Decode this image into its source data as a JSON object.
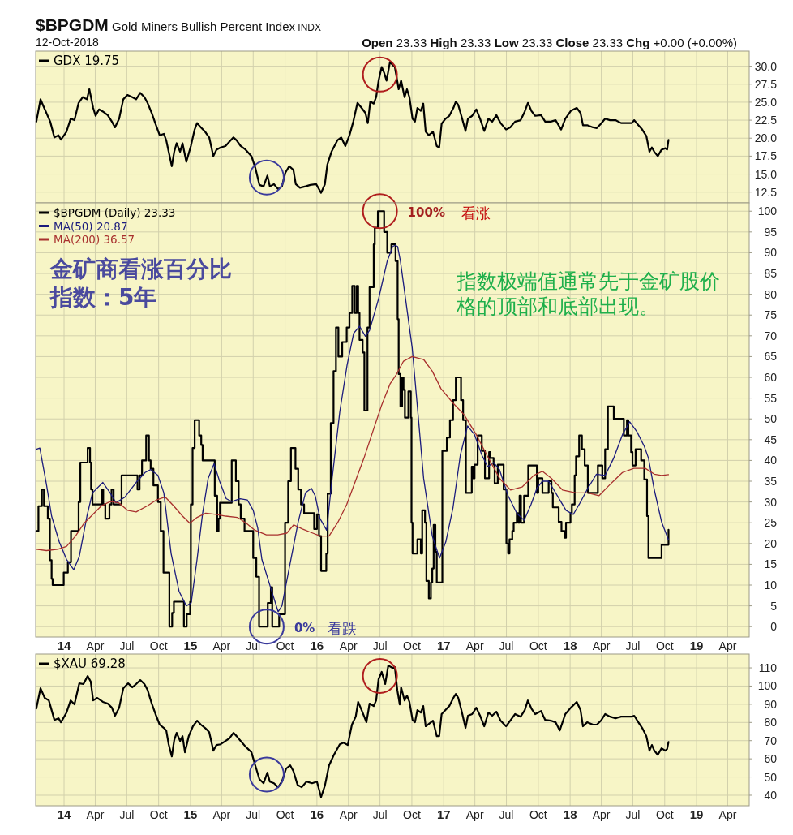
{
  "chart_data": [
    {
      "type": "line",
      "title": "$BPGDM Gold Miners Bullish Percent Index INDX",
      "subtitle": "12-Oct-2018",
      "annotations": [
        "Open 23.33 High 23.33 Low 23.33 Close 23.33 Chg +0.00 (+0.00%)"
      ],
      "x": [
        "2013-10-13",
        "2013-10-25",
        "2013-11-01",
        "2013-11-22",
        "2013-12-04",
        "2013-12-16",
        "2013-12-23",
        "2014-01-08",
        "2014-01-20",
        "2014-01-31",
        "2014-02-12",
        "2014-02-24",
        "2014-03-08",
        "2014-03-15",
        "2014-03-26",
        "2014-04-02",
        "2014-04-12",
        "2014-04-23",
        "2014-05-07",
        "2014-05-19",
        "2014-05-28",
        "2014-06-09",
        "2014-06-21",
        "2014-07-03",
        "2014-07-17",
        "2014-07-28",
        "2014-08-09",
        "2014-08-21",
        "2014-08-30",
        "2014-09-11",
        "2014-09-22",
        "2014-10-04",
        "2014-10-16",
        "2014-10-23",
        "2014-10-30",
        "2014-11-08",
        "2014-11-15",
        "2014-11-22",
        "2014-12-02",
        "2014-12-09",
        "2014-12-20",
        "2015-01-02",
        "2015-01-13",
        "2015-01-20",
        "2015-01-31",
        "2015-02-12",
        "2015-02-24",
        "2015-03-08",
        "2015-03-17",
        "2015-03-29",
        "2015-04-12",
        "2015-04-23",
        "2015-05-05",
        "2015-05-14",
        "2015-05-26",
        "2015-06-09",
        "2015-06-26",
        "2015-07-07",
        "2015-07-19",
        "2015-07-31",
        "2015-08-11",
        "2015-08-18",
        "2015-08-30",
        "2015-09-11",
        "2015-09-22",
        "2015-10-02",
        "2015-10-13",
        "2015-10-25",
        "2015-11-01",
        "2015-11-13",
        "2015-11-29",
        "2015-12-13",
        "2015-12-30",
        "2016-01-13",
        "2016-01-24",
        "2016-01-31",
        "2016-02-12",
        "2016-02-29",
        "2016-03-11",
        "2016-03-23",
        "2016-04-04",
        "2016-04-15",
        "2016-04-27",
        "2016-05-09",
        "2016-05-20",
        "2016-05-27",
        "2016-06-03",
        "2016-06-13",
        "2016-06-20",
        "2016-06-27",
        "2016-07-06",
        "2016-07-13",
        "2016-07-20",
        "2016-07-30",
        "2016-08-06",
        "2016-08-13",
        "2016-08-24",
        "2016-08-31",
        "2016-09-10",
        "2016-09-17",
        "2016-09-24",
        "2016-10-03",
        "2016-10-10",
        "2016-10-17",
        "2016-10-27",
        "2016-11-03",
        "2016-11-10",
        "2016-11-19",
        "2016-12-01",
        "2016-12-12",
        "2016-12-19",
        "2016-12-26",
        "2017-01-06",
        "2017-01-17",
        "2017-01-29",
        "2017-02-05",
        "2017-02-12",
        "2017-02-21",
        "2017-03-05",
        "2017-03-12",
        "2017-03-24",
        "2017-04-05",
        "2017-04-16",
        "2017-04-28",
        "2017-05-10",
        "2017-05-21",
        "2017-06-02",
        "2017-06-14",
        "2017-06-30",
        "2017-07-12",
        "2017-07-26",
        "2017-08-11",
        "2017-08-23",
        "2017-09-01",
        "2017-09-11",
        "2017-09-22",
        "2017-10-09",
        "2017-10-21",
        "2017-11-06",
        "2017-11-20",
        "2017-12-06",
        "2017-12-18",
        "2018-01-03",
        "2018-01-20",
        "2018-01-31",
        "2018-02-07",
        "2018-02-19",
        "2018-03-08",
        "2018-03-19",
        "2018-03-31",
        "2018-04-12",
        "2018-04-26",
        "2018-05-12",
        "2018-05-28",
        "2018-06-11",
        "2018-06-28",
        "2018-07-05",
        "2018-07-17",
        "2018-07-28",
        "2018-08-09",
        "2018-08-18",
        "2018-08-25",
        "2018-09-01",
        "2018-09-11",
        "2018-09-22",
        "2018-10-03",
        "2018-10-08",
        "2018-10-12"
      ],
      "series": [
        {
          "name": "GDX 19.75",
          "color": "#000000",
          "values": [
            22.3,
            25.4,
            24.6,
            22.3,
            20.1,
            20.4,
            19.8,
            20.9,
            22.7,
            22.5,
            24.9,
            25.7,
            25.4,
            26.8,
            24.2,
            23.1,
            24,
            23.7,
            23.2,
            22.3,
            21.5,
            22.7,
            25.4,
            26,
            25.7,
            25.4,
            26.3,
            25.7,
            24.9,
            23.5,
            22,
            20.4,
            20.6,
            19.7,
            18.1,
            16.1,
            18.1,
            19.3,
            18.1,
            19.3,
            16.7,
            18.9,
            21.2,
            22.1,
            21.5,
            20.9,
            20.1,
            17.5,
            18.4,
            18.7,
            18.9,
            19.5,
            20.1,
            19.7,
            18.9,
            18.4,
            17.5,
            15.9,
            13.5,
            13.3,
            14.8,
            13.3,
            13.6,
            12.9,
            13.3,
            15.2,
            16.1,
            15.6,
            13.6,
            13.1,
            13.3,
            13.5,
            13.6,
            12.4,
            13.6,
            16.3,
            18.1,
            19.7,
            20.1,
            18.9,
            20.4,
            22.3,
            24.9,
            24.2,
            23.5,
            22.1,
            25.1,
            24.8,
            25.7,
            28,
            29.9,
            29.1,
            28,
            30.6,
            30.2,
            29.9,
            26.8,
            28,
            25.7,
            26.8,
            25.7,
            22.7,
            22.3,
            24.2,
            23.8,
            24.8,
            20.9,
            20.4,
            20.9,
            18.9,
            18.7,
            22,
            22.7,
            23.1,
            24.2,
            25.1,
            24.6,
            23.1,
            21,
            22.7,
            23.1,
            24,
            22.7,
            21,
            22.7,
            22.3,
            23.2,
            22.1,
            21.2,
            21.5,
            22.3,
            22.5,
            23.7,
            24.9,
            23.8,
            23.1,
            23.2,
            22.3,
            22.3,
            22.5,
            21.2,
            22.7,
            23.8,
            24.2,
            23.5,
            21.8,
            21.8,
            21.5,
            21.4,
            22,
            22.7,
            22.5,
            22.5,
            22.1,
            22.1,
            22.1,
            22.5,
            21.8,
            21.2,
            20.3,
            18.1,
            18.7,
            18.1,
            17.5,
            18.4,
            18.6,
            18.4,
            19.75
          ]
        }
      ],
      "xlim": [
        "2013-10-11",
        "2019-06-02"
      ],
      "xticks": [
        {
          "value": "2014-01-01",
          "label": null
        },
        {
          "value": "2014-04-01",
          "label": null
        },
        {
          "value": "2014-07-01",
          "label": null
        },
        {
          "value": "2014-10-01",
          "label": null
        },
        {
          "value": "2015-01-01",
          "label": null
        },
        {
          "value": "2015-04-01",
          "label": null
        },
        {
          "value": "2015-07-01",
          "label": null
        },
        {
          "value": "2015-10-01",
          "label": null
        },
        {
          "value": "2016-01-01",
          "label": null
        },
        {
          "value": "2016-04-01",
          "label": null
        },
        {
          "value": "2016-07-01",
          "label": null
        },
        {
          "value": "2016-10-01",
          "label": null
        },
        {
          "value": "2017-01-01",
          "label": null
        },
        {
          "value": "2017-04-01",
          "label": null
        },
        {
          "value": "2017-07-01",
          "label": null
        },
        {
          "value": "2017-10-01",
          "label": null
        },
        {
          "value": "2018-01-01",
          "label": null
        },
        {
          "value": "2018-04-01",
          "label": null
        },
        {
          "value": "2018-07-01",
          "label": null
        },
        {
          "value": "2018-10-01",
          "label": null
        },
        {
          "value": "2019-01-01",
          "label": null
        },
        {
          "value": "2019-04-01",
          "label": null
        }
      ],
      "ylim": [
        11,
        32.1
      ],
      "yticks": [
        12.5,
        {
          "value": 15,
          "label": "15.0"
        },
        17.5,
        {
          "value": 20,
          "label": "20.0"
        },
        22.5,
        {
          "value": 25,
          "label": "25.0"
        },
        27.5,
        {
          "value": 30,
          "label": "30.0"
        }
      ],
      "grid": true,
      "legend": "top left",
      "tick_labels": "y"
    },
    {
      "type": "line",
      "annotations": [
        {
          "text": "100%",
          "x": "2016-07-01",
          "y": 100
        },
        "看涨",
        {
          "text": "0%",
          "x": "2015-08-09",
          "y": 0
        },
        "看跌",
        "金矿商看涨百分比指数：5年",
        "指数极端值通常先于金矿股价格的顶部和底部出现。"
      ],
      "series": [
        {
          "name": "$BPGDM (Daily) 23.33",
          "type": "step",
          "color": "#000000",
          "x": [
            "2013-10-13",
            "2013-10-19",
            "2013-10-29",
            "2013-11-04",
            "2013-11-15",
            "2013-11-21",
            "2013-11-26",
            "2013-11-29",
            "2013-12-31",
            "2014-01-12",
            "2014-01-21",
            "2014-02-12",
            "2014-02-17",
            "2014-03-10",
            "2014-03-17",
            "2014-03-20",
            "2014-03-24",
            "2014-04-19",
            "2014-04-24",
            "2014-04-30",
            "2014-05-12",
            "2014-05-18",
            "2014-05-24",
            "2014-06-16",
            "2014-08-01",
            "2014-08-07",
            "2014-08-14",
            "2014-08-26",
            "2014-09-03",
            "2014-09-08",
            "2014-09-16",
            "2014-09-29",
            "2014-10-07",
            "2014-10-15",
            "2014-11-01",
            "2014-11-09",
            "2014-11-14",
            "2014-12-13",
            "2014-12-21",
            "2014-12-31",
            "2015-01-02",
            "2015-01-07",
            "2015-01-13",
            "2015-01-26",
            "2015-02-01",
            "2015-02-05",
            "2015-03-12",
            "2015-03-19",
            "2015-03-23",
            "2015-03-27",
            "2015-04-30",
            "2015-05-12",
            "2015-05-20",
            "2015-05-26",
            "2015-06-06",
            "2015-07-01",
            "2015-07-10",
            "2015-07-18",
            "2015-08-12",
            "2015-08-21",
            "2015-08-25",
            "2015-09-14",
            "2015-10-01",
            "2015-10-10",
            "2015-10-18",
            "2015-10-31",
            "2015-11-08",
            "2015-11-16",
            "2015-11-25",
            "2015-12-24",
            "2016-01-01",
            "2016-01-07",
            "2016-01-13",
            "2016-01-28",
            "2016-02-01",
            "2016-02-10",
            "2016-02-18",
            "2016-02-25",
            "2016-03-03",
            "2016-03-14",
            "2016-03-27",
            "2016-04-04",
            "2016-04-12",
            "2016-04-19",
            "2016-04-25",
            "2016-04-29",
            "2016-05-03",
            "2016-05-12",
            "2016-05-17",
            "2016-05-26",
            "2016-06-01",
            "2016-06-13",
            "2016-06-16",
            "2016-06-25",
            "2016-07-13",
            "2016-07-22",
            "2016-08-03",
            "2016-08-15",
            "2016-08-21",
            "2016-08-24",
            "2016-08-29",
            "2016-09-03",
            "2016-09-07",
            "2016-09-11",
            "2016-09-21",
            "2016-09-28",
            "2016-09-30",
            "2016-10-03",
            "2016-10-17",
            "2016-10-27",
            "2016-10-31",
            "2016-11-08",
            "2016-11-12",
            "2016-11-19",
            "2016-11-25",
            "2016-11-29",
            "2016-12-03",
            "2016-12-08",
            "2016-12-12",
            "2016-12-28",
            "2017-01-10",
            "2017-01-19",
            "2017-01-28",
            "2017-02-05",
            "2017-02-20",
            "2017-02-26",
            "2017-03-06",
            "2017-03-23",
            "2017-03-27",
            "2017-03-31",
            "2017-04-09",
            "2017-04-21",
            "2017-04-30",
            "2017-05-12",
            "2017-05-16",
            "2017-05-25",
            "2017-05-28",
            "2017-06-06",
            "2017-06-23",
            "2017-07-01",
            "2017-07-06",
            "2017-07-10",
            "2017-07-18",
            "2017-07-22",
            "2017-07-31",
            "2017-08-04",
            "2017-08-08",
            "2017-08-12",
            "2017-08-21",
            "2017-09-02",
            "2017-09-27",
            "2017-10-01",
            "2017-10-13",
            "2017-10-31",
            "2017-11-08",
            "2017-11-12",
            "2017-11-29",
            "2017-12-07",
            "2017-12-16",
            "2017-12-20",
            "2018-01-02",
            "2018-01-06",
            "2018-01-14",
            "2018-01-18",
            "2018-01-27",
            "2018-02-04",
            "2018-02-12",
            "2018-02-21",
            "2018-03-22",
            "2018-04-04",
            "2018-04-12",
            "2018-04-20",
            "2018-05-07",
            "2018-06-05",
            "2018-06-14",
            "2018-06-18",
            "2018-06-26",
            "2018-06-30",
            "2018-07-09",
            "2018-07-25",
            "2018-08-03",
            "2018-08-11",
            "2018-08-15",
            "2018-09-22",
            "2018-10-12"
          ],
          "values": [
            23,
            29,
            33,
            29,
            26,
            16,
            11.5,
            10,
            13,
            15.5,
            23,
            30,
            39.5,
            43,
            39.5,
            33,
            29.4,
            33,
            29.4,
            26,
            29.4,
            33,
            29.4,
            36.4,
            33,
            36.4,
            40,
            46,
            40,
            38,
            34,
            30,
            23,
            13,
            0,
            3.3,
            6,
            0,
            3,
            6,
            29.4,
            43,
            49.7,
            46,
            43.7,
            40,
            31.5,
            23,
            26,
            29.8,
            40,
            35,
            29.4,
            26,
            23,
            16.5,
            12,
            0,
            5.7,
            9.5,
            0,
            3,
            25,
            35,
            43,
            38,
            33,
            29.4,
            27.3,
            23.5,
            27,
            21.8,
            13.4,
            17.6,
            32,
            49,
            61.5,
            72,
            65,
            68.5,
            72,
            75.5,
            82,
            75.5,
            82,
            75.5,
            69,
            66,
            52,
            72,
            81.7,
            92,
            96,
            100,
            95,
            90,
            92,
            88,
            74,
            60.8,
            53,
            60,
            57,
            50.3,
            56.6,
            50.3,
            25,
            17.6,
            21,
            17.6,
            28,
            25,
            11,
            6.8,
            10.6,
            14,
            24.5,
            18,
            10.6,
            42.3,
            45.5,
            49.7,
            54.5,
            60,
            54.5,
            49.7,
            32.2,
            38.5,
            35.7,
            39,
            46,
            42.3,
            35.7,
            42,
            40.6,
            39,
            34.5,
            39,
            33,
            20,
            17.6,
            21,
            23,
            25,
            27.3,
            25,
            31.5,
            25,
            31.5,
            38.8,
            32.2,
            35.7,
            32.2,
            35,
            32.2,
            28.7,
            25.2,
            23,
            21.4,
            25,
            27.3,
            29.4,
            36.4,
            41,
            46,
            42.7,
            38.8,
            32.2,
            38.8,
            35.7,
            42.7,
            53,
            50,
            46,
            49.7,
            46,
            42,
            38.8,
            42.7,
            40,
            35.4,
            26.6,
            16.5,
            19.7,
            23.33
          ]
        },
        {
          "name": "MA(50) 20.87",
          "color": "#1b1b7d",
          "x": [
            "2013-10-13",
            "2013-10-23",
            "2013-11-11",
            "2013-11-26",
            "2013-12-18",
            "2014-01-08",
            "2014-01-29",
            "2014-02-14",
            "2014-03-08",
            "2014-03-24",
            "2014-04-23",
            "2014-05-14",
            "2014-05-31",
            "2014-06-26",
            "2014-07-28",
            "2014-08-23",
            "2014-09-08",
            "2014-09-29",
            "2014-10-16",
            "2014-11-06",
            "2014-11-29",
            "2014-12-20",
            "2015-01-03",
            "2015-01-20",
            "2015-02-05",
            "2015-02-21",
            "2015-03-10",
            "2015-03-26",
            "2015-04-14",
            "2015-04-30",
            "2015-05-24",
            "2015-06-14",
            "2015-07-01",
            "2015-07-14",
            "2015-07-26",
            "2015-08-21",
            "2015-09-11",
            "2015-09-22",
            "2015-10-13",
            "2015-11-08",
            "2015-11-29",
            "2015-12-16",
            "2015-12-27",
            "2016-01-10",
            "2016-01-29",
            "2016-02-14",
            "2016-03-07",
            "2016-03-28",
            "2016-04-16",
            "2016-05-03",
            "2016-05-20",
            "2016-06-01",
            "2016-06-27",
            "2016-07-22",
            "2016-08-07",
            "2016-08-14",
            "2016-08-21",
            "2016-08-29",
            "2016-09-14",
            "2016-10-02",
            "2016-10-19",
            "2016-11-04",
            "2016-11-29",
            "2016-12-20",
            "2017-01-07",
            "2017-01-28",
            "2017-02-18",
            "2017-03-11",
            "2017-03-31",
            "2017-04-21",
            "2017-05-08",
            "2017-05-25",
            "2017-06-11",
            "2017-07-06",
            "2017-07-31",
            "2017-08-21",
            "2017-09-10",
            "2017-09-27",
            "2017-10-13",
            "2017-10-31",
            "2017-11-25",
            "2017-12-20",
            "2018-01-10",
            "2018-01-27",
            "2018-02-21",
            "2018-03-18",
            "2018-04-12",
            "2018-05-07",
            "2018-06-01",
            "2018-06-22",
            "2018-07-13",
            "2018-08-03",
            "2018-08-15",
            "2018-09-01",
            "2018-09-22",
            "2018-10-12"
          ],
          "values": [
            42.7,
            43,
            34.3,
            26.6,
            20.4,
            16.2,
            13.7,
            16.9,
            26.6,
            32.2,
            34.7,
            32.2,
            29.8,
            31.2,
            34.7,
            37.1,
            37.8,
            36.4,
            32.2,
            17.6,
            8.5,
            5,
            5.7,
            16.2,
            27.3,
            35.7,
            39.2,
            35,
            30.8,
            30.1,
            30.8,
            30.5,
            28,
            23.8,
            16.2,
            9.2,
            3.6,
            5,
            14.1,
            25.2,
            32.2,
            33.3,
            31.5,
            26,
            23.2,
            35.7,
            51.7,
            62.9,
            70.6,
            72.3,
            69.9,
            71.3,
            78.9,
            88,
            91.5,
            91.8,
            91.5,
            88,
            78.2,
            67.1,
            51,
            35.7,
            21.8,
            16.5,
            20.4,
            28.7,
            41.3,
            48.3,
            46.2,
            41.3,
            38.5,
            39.5,
            37.8,
            31.5,
            27.3,
            25.6,
            29.4,
            33.3,
            35,
            35,
            31.5,
            28,
            27,
            29.4,
            33.3,
            36.7,
            36.4,
            40.6,
            46.2,
            49.3,
            46.9,
            43.4,
            40.6,
            32.9,
            25.2,
            20.87
          ]
        },
        {
          "name": "MA(200) 36.57",
          "color": "#a8302e",
          "x": [
            "2013-10-13",
            "2013-11-11",
            "2013-12-14",
            "2014-01-08",
            "2014-02-03",
            "2014-02-28",
            "2014-03-25",
            "2014-04-19",
            "2014-05-14",
            "2014-06-08",
            "2014-07-03",
            "2014-07-28",
            "2014-08-30",
            "2014-09-25",
            "2014-10-20",
            "2014-11-13",
            "2014-12-09",
            "2014-12-30",
            "2015-01-20",
            "2015-02-14",
            "2015-03-15",
            "2015-04-13",
            "2015-05-16",
            "2015-06-11",
            "2015-07-06",
            "2015-08-08",
            "2015-09-10",
            "2015-10-06",
            "2015-10-26",
            "2015-11-20",
            "2015-12-20",
            "2016-01-11",
            "2016-02-05",
            "2016-03-02",
            "2016-03-27",
            "2016-04-21",
            "2016-05-16",
            "2016-06-10",
            "2016-07-05",
            "2016-07-30",
            "2016-08-16",
            "2016-09-07",
            "2016-10-02",
            "2016-11-04",
            "2016-11-29",
            "2016-12-24",
            "2017-01-28",
            "2017-03-01",
            "2017-04-05",
            "2017-05-08",
            "2017-06-11",
            "2017-07-13",
            "2017-08-15",
            "2017-09-18",
            "2017-10-13",
            "2017-11-08",
            "2017-12-10",
            "2018-01-18",
            "2018-02-21",
            "2018-03-25",
            "2018-04-27",
            "2018-06-01",
            "2018-07-04",
            "2018-08-06",
            "2018-09-01",
            "2018-09-22",
            "2018-10-12"
          ],
          "values": [
            18.6,
            18.3,
            18.6,
            19.3,
            21.8,
            24.9,
            27,
            29.1,
            30.1,
            29.8,
            28,
            27.6,
            29.1,
            30.5,
            31.2,
            29.1,
            26.6,
            24.9,
            26.3,
            27.3,
            27,
            26.6,
            26.3,
            24.9,
            23.2,
            22.1,
            22.1,
            22.5,
            24.5,
            23.5,
            22.5,
            21.8,
            21.8,
            25.2,
            29.4,
            35,
            40.6,
            46.9,
            53.1,
            58.4,
            60.5,
            63.9,
            65,
            64.3,
            61.5,
            57.3,
            53.8,
            51,
            46.2,
            40.9,
            35.7,
            32.9,
            33.6,
            36.4,
            37.4,
            35.7,
            32.9,
            32.2,
            32.2,
            31.5,
            34.3,
            37.1,
            38.1,
            38.1,
            36.7,
            36.4,
            36.57
          ]
        }
      ],
      "xlim": [
        "2013-10-11",
        "2019-06-02"
      ],
      "xticks": [
        {
          "value": "2014-01-01",
          "label": "14"
        },
        {
          "value": "2014-04-01",
          "label": "Apr"
        },
        {
          "value": "2014-07-01",
          "label": "Jul"
        },
        {
          "value": "2014-10-01",
          "label": "Oct"
        },
        {
          "value": "2015-01-01",
          "label": "15"
        },
        {
          "value": "2015-04-01",
          "label": "Apr"
        },
        {
          "value": "2015-07-01",
          "label": "Jul"
        },
        {
          "value": "2015-10-01",
          "label": "Oct"
        },
        {
          "value": "2016-01-01",
          "label": "16"
        },
        {
          "value": "2016-04-01",
          "label": "Apr"
        },
        {
          "value": "2016-07-01",
          "label": "Jul"
        },
        {
          "value": "2016-10-01",
          "label": "Oct"
        },
        {
          "value": "2017-01-01",
          "label": "17"
        },
        {
          "value": "2017-04-01",
          "label": "Apr"
        },
        {
          "value": "2017-07-01",
          "label": "Jul"
        },
        {
          "value": "2017-10-01",
          "label": "Oct"
        },
        {
          "value": "2018-01-01",
          "label": "18"
        },
        {
          "value": "2018-04-01",
          "label": "Apr"
        },
        {
          "value": "2018-07-01",
          "label": "Jul"
        },
        {
          "value": "2018-10-01",
          "label": "Oct"
        },
        {
          "value": "2019-01-01",
          "label": "19"
        },
        {
          "value": "2019-04-01",
          "label": "Apr"
        }
      ],
      "ylim": [
        -2.5,
        102
      ],
      "yticks": [
        0,
        5,
        10,
        15,
        20,
        25,
        30,
        35,
        40,
        45,
        50,
        55,
        60,
        65,
        70,
        75,
        80,
        85,
        90,
        95,
        100
      ],
      "grid": true,
      "legend": "top left"
    },
    {
      "type": "line",
      "x": [
        "2013-10-13",
        "2013-10-25",
        "2013-11-06",
        "2013-11-18",
        "2013-12-04",
        "2013-12-16",
        "2013-12-23",
        "2014-01-08",
        "2014-01-20",
        "2014-01-31",
        "2014-02-14",
        "2014-02-26",
        "2014-03-10",
        "2014-03-19",
        "2014-03-26",
        "2014-04-07",
        "2014-04-23",
        "2014-05-07",
        "2014-05-19",
        "2014-05-28",
        "2014-06-09",
        "2014-06-21",
        "2014-07-05",
        "2014-07-17",
        "2014-07-28",
        "2014-08-09",
        "2014-08-21",
        "2014-08-30",
        "2014-09-11",
        "2014-09-22",
        "2014-10-04",
        "2014-10-16",
        "2014-10-23",
        "2014-10-30",
        "2014-11-08",
        "2014-11-15",
        "2014-11-22",
        "2014-12-02",
        "2014-12-09",
        "2014-12-16",
        "2014-12-27",
        "2015-01-08",
        "2015-01-20",
        "2015-01-31",
        "2015-02-12",
        "2015-02-24",
        "2015-03-08",
        "2015-03-17",
        "2015-03-29",
        "2015-04-12",
        "2015-04-23",
        "2015-05-05",
        "2015-05-14",
        "2015-05-26",
        "2015-06-09",
        "2015-06-26",
        "2015-07-07",
        "2015-07-19",
        "2015-07-31",
        "2015-08-11",
        "2015-08-18",
        "2015-08-30",
        "2015-09-11",
        "2015-09-22",
        "2015-10-04",
        "2015-10-16",
        "2015-10-25",
        "2015-11-06",
        "2015-11-18",
        "2015-12-02",
        "2015-12-18",
        "2016-01-01",
        "2016-01-13",
        "2016-01-24",
        "2016-02-05",
        "2016-02-19",
        "2016-03-07",
        "2016-03-18",
        "2016-03-30",
        "2016-04-11",
        "2016-04-22",
        "2016-04-29",
        "2016-05-11",
        "2016-05-23",
        "2016-06-01",
        "2016-06-13",
        "2016-06-20",
        "2016-06-27",
        "2016-07-06",
        "2016-07-16",
        "2016-07-25",
        "2016-08-06",
        "2016-08-13",
        "2016-08-20",
        "2016-08-27",
        "2016-08-31",
        "2016-09-10",
        "2016-09-17",
        "2016-09-24",
        "2016-10-03",
        "2016-10-10",
        "2016-10-17",
        "2016-10-27",
        "2016-11-03",
        "2016-11-10",
        "2016-11-19",
        "2016-12-01",
        "2016-12-12",
        "2016-12-19",
        "2016-12-26",
        "2017-01-06",
        "2017-01-17",
        "2017-01-29",
        "2017-02-05",
        "2017-02-12",
        "2017-02-21",
        "2017-03-05",
        "2017-03-12",
        "2017-03-24",
        "2017-04-05",
        "2017-04-16",
        "2017-04-28",
        "2017-05-10",
        "2017-05-21",
        "2017-06-02",
        "2017-06-14",
        "2017-06-30",
        "2017-07-12",
        "2017-07-26",
        "2017-08-11",
        "2017-08-23",
        "2017-09-01",
        "2017-09-11",
        "2017-09-22",
        "2017-10-09",
        "2017-10-21",
        "2017-11-06",
        "2017-11-20",
        "2017-12-02",
        "2017-12-18",
        "2018-01-03",
        "2018-01-20",
        "2018-01-31",
        "2018-02-07",
        "2018-02-19",
        "2018-03-08",
        "2018-03-19",
        "2018-03-31",
        "2018-04-12",
        "2018-04-26",
        "2018-05-12",
        "2018-05-28",
        "2018-06-11",
        "2018-06-28",
        "2018-07-05",
        "2018-07-17",
        "2018-07-28",
        "2018-08-09",
        "2018-08-18",
        "2018-08-25",
        "2018-09-01",
        "2018-09-11",
        "2018-09-22",
        "2018-10-03",
        "2018-10-08",
        "2018-10-12"
      ],
      "series": [
        {
          "name": "$XAU 69.28",
          "color": "#000000",
          "values": [
            87.7,
            98.8,
            93.5,
            92.1,
            81.4,
            82.3,
            80.1,
            85.4,
            92.1,
            89.9,
            101.5,
            101.1,
            105.5,
            102.4,
            92.1,
            93.5,
            91.3,
            90.4,
            88.1,
            83.7,
            88.1,
            98.8,
            101.5,
            99.3,
            101.1,
            103.3,
            101.1,
            97.9,
            90.4,
            84.6,
            78.8,
            77,
            75.6,
            68,
            61.3,
            70.3,
            74.3,
            69.8,
            72.5,
            63.6,
            72.5,
            77.9,
            81,
            78.8,
            77,
            74.7,
            64.5,
            67.6,
            68,
            69.8,
            71.2,
            74.3,
            72.5,
            69.8,
            66.7,
            63.6,
            56.4,
            48.8,
            46.6,
            52.4,
            47.5,
            46.6,
            44.4,
            47.5,
            54.6,
            56.4,
            53.3,
            45.7,
            44.4,
            47.5,
            46.6,
            47.5,
            39,
            45.3,
            56.4,
            62.2,
            68,
            68.9,
            67.6,
            78.8,
            83.2,
            91.3,
            85.9,
            80.1,
            90.4,
            89,
            92.1,
            103.8,
            107.8,
            101.1,
            111.3,
            110,
            110.4,
            97.9,
            89.9,
            99.3,
            92.1,
            94.8,
            91.3,
            81.4,
            80.1,
            86.8,
            85.4,
            89,
            77.9,
            79.2,
            81,
            72.5,
            72.5,
            84.6,
            86.8,
            89,
            93.5,
            95.7,
            93.5,
            86.8,
            77,
            83.7,
            84.6,
            88.1,
            83.7,
            77.9,
            85.4,
            83.7,
            85.9,
            81,
            77.9,
            81,
            84.6,
            83.2,
            86.8,
            92.1,
            87.7,
            84.6,
            86.3,
            81.4,
            81,
            80.1,
            75.6,
            84.6,
            88.1,
            91.3,
            86.8,
            77.9,
            80.1,
            78.8,
            78.8,
            81,
            84.6,
            83.2,
            82.3,
            83.2,
            83.2,
            83.2,
            83.7,
            80.1,
            77,
            72.5,
            64.5,
            67.6,
            64.5,
            62.2,
            65.8,
            64.5,
            65.4,
            69.28
          ]
        }
      ],
      "xlim": [
        "2013-10-11",
        "2019-06-02"
      ],
      "xticks": [
        {
          "value": "2014-01-01",
          "label": "14"
        },
        {
          "value": "2014-04-01",
          "label": "Apr"
        },
        {
          "value": "2014-07-01",
          "label": "Jul"
        },
        {
          "value": "2014-10-01",
          "label": "Oct"
        },
        {
          "value": "2015-01-01",
          "label": "15"
        },
        {
          "value": "2015-04-01",
          "label": "Apr"
        },
        {
          "value": "2015-07-01",
          "label": "Jul"
        },
        {
          "value": "2015-10-01",
          "label": "Oct"
        },
        {
          "value": "2016-01-01",
          "label": "16"
        },
        {
          "value": "2016-04-01",
          "label": "Apr"
        },
        {
          "value": "2016-07-01",
          "label": "Jul"
        },
        {
          "value": "2016-10-01",
          "label": "Oct"
        },
        {
          "value": "2017-01-01",
          "label": "17"
        },
        {
          "value": "2017-04-01",
          "label": "Apr"
        },
        {
          "value": "2017-07-01",
          "label": "Jul"
        },
        {
          "value": "2017-10-01",
          "label": "Oct"
        },
        {
          "value": "2018-01-01",
          "label": "18"
        },
        {
          "value": "2018-04-01",
          "label": "Apr"
        },
        {
          "value": "2018-07-01",
          "label": "Jul"
        },
        {
          "value": "2018-10-01",
          "label": "Oct"
        },
        {
          "value": "2019-01-01",
          "label": "19"
        },
        {
          "value": "2019-04-01",
          "label": "Apr"
        }
      ],
      "ylim": [
        34.2,
        117.6
      ],
      "yticks": [
        40,
        50,
        60,
        70,
        80,
        90,
        100,
        110
      ],
      "grid": true,
      "legend": "top left"
    }
  ]
}
